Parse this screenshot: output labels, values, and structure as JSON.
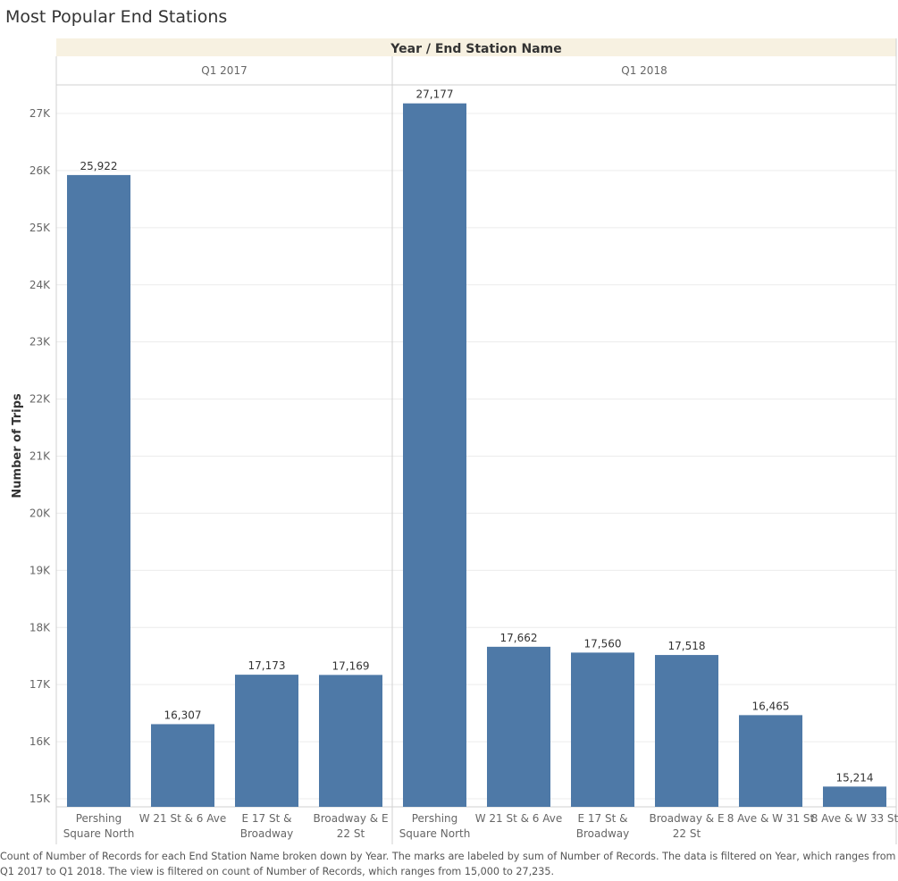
{
  "title": "Most Popular End Stations",
  "chart_data": {
    "type": "bar",
    "header": "Year  /  End Station Name",
    "ylabel": "Number of Trips",
    "ylim": [
      15000,
      27500
    ],
    "yticks": [
      15000,
      16000,
      17000,
      18000,
      19000,
      20000,
      21000,
      22000,
      23000,
      24000,
      25000,
      26000,
      27000
    ],
    "ytick_labels": [
      "15K",
      "16K",
      "17K",
      "18K",
      "19K",
      "20K",
      "21K",
      "22K",
      "23K",
      "24K",
      "25K",
      "26K",
      "27K"
    ],
    "grid": true,
    "bar_color": "#4e79a7",
    "panels": [
      {
        "name": "Q1 2017",
        "categories": [
          [
            "Pershing",
            "Square North"
          ],
          [
            "W 21 St & 6 Ave"
          ],
          [
            "E 17 St &",
            "Broadway"
          ],
          [
            "Broadway & E",
            "22 St"
          ]
        ],
        "values": [
          25922,
          16307,
          17173,
          17169
        ],
        "labels": [
          "25,922",
          "16,307",
          "17,173",
          "17,169"
        ]
      },
      {
        "name": "Q1 2018",
        "categories": [
          [
            "Pershing",
            "Square North"
          ],
          [
            "W 21 St & 6 Ave"
          ],
          [
            "E 17 St &",
            "Broadway"
          ],
          [
            "Broadway & E",
            "22 St"
          ],
          [
            "8 Ave & W 31 St"
          ],
          [
            "8 Ave & W 33 St"
          ]
        ],
        "values": [
          27177,
          17662,
          17560,
          17518,
          16465,
          15214
        ],
        "labels": [
          "27,177",
          "17,662",
          "17,560",
          "17,518",
          "16,465",
          "15,214"
        ]
      }
    ]
  },
  "caption": "Count of Number of Records for each End Station Name broken down by Year.  The marks are labeled by sum of Number of Records. The data is filtered on Year, which ranges from Q1 2017 to Q1 2018. The view is filtered on count of Number of Records, which ranges from 15,000 to 27,235."
}
